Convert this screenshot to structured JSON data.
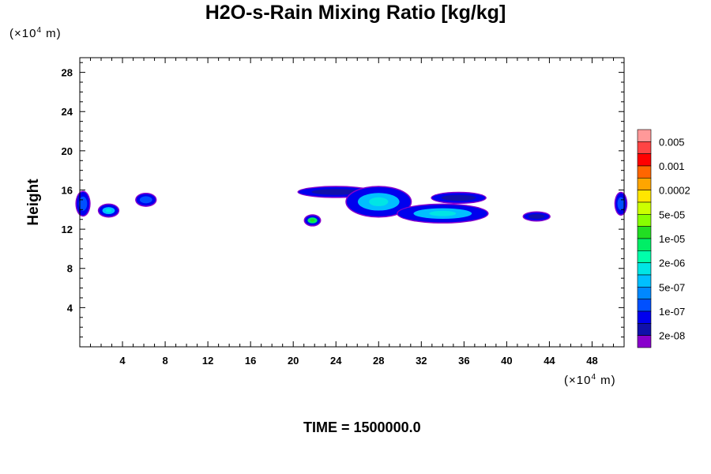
{
  "chart_data": {
    "type": "heatmap",
    "title": "H2O-s-Rain Mixing Ratio [kg/kg]",
    "ylabel": "Height",
    "x_unit": "m",
    "y_unit": "m",
    "unit_prefix": "(×10",
    "unit_exp": "4",
    "unit_suffix": " m)",
    "xlim": [
      0,
      51
    ],
    "ylim": [
      0,
      29.5
    ],
    "x_ticks": [
      4,
      8,
      12,
      16,
      20,
      24,
      28,
      32,
      36,
      40,
      44,
      48
    ],
    "y_ticks": [
      4,
      8,
      12,
      16,
      20,
      24,
      28
    ],
    "time_label": "TIME = 1500000.0",
    "colorbar": {
      "labels": [
        "0.005",
        "0.001",
        "0.0002",
        "5e-05",
        "1e-05",
        "2e-06",
        "5e-07",
        "1e-07",
        "2e-08"
      ],
      "colors": [
        "#ff9999",
        "#ff4444",
        "#ff0000",
        "#ff6600",
        "#ffa500",
        "#ffe600",
        "#ccff00",
        "#88ff00",
        "#22dd22",
        "#00ee66",
        "#00ffaa",
        "#00e5e5",
        "#00bfff",
        "#0088ff",
        "#0050ff",
        "#0000ee",
        "#1010aa",
        "#8800cc"
      ]
    },
    "features": [
      {
        "x": 0.3,
        "y": 14.6,
        "rx": 0.6,
        "ry": 1.2,
        "level": "1e-07"
      },
      {
        "x": 2.7,
        "y": 13.9,
        "rx": 0.9,
        "ry": 0.6,
        "level": "5e-07"
      },
      {
        "x": 6.2,
        "y": 15.0,
        "rx": 0.9,
        "ry": 0.6,
        "level": "1e-07"
      },
      {
        "x": 21.8,
        "y": 12.9,
        "rx": 0.7,
        "ry": 0.5,
        "level": "2e-06"
      },
      {
        "x": 24.0,
        "y": 15.8,
        "rx": 3.5,
        "ry": 0.5,
        "level": "2e-08"
      },
      {
        "x": 28.0,
        "y": 14.8,
        "rx": 3.0,
        "ry": 1.5,
        "level": "5e-07"
      },
      {
        "x": 34.0,
        "y": 13.6,
        "rx": 4.2,
        "ry": 0.9,
        "level": "5e-07"
      },
      {
        "x": 35.5,
        "y": 15.2,
        "rx": 2.5,
        "ry": 0.5,
        "level": "2e-08"
      },
      {
        "x": 42.8,
        "y": 13.3,
        "rx": 1.2,
        "ry": 0.4,
        "level": "2e-08"
      },
      {
        "x": 50.7,
        "y": 14.6,
        "rx": 0.5,
        "ry": 1.1,
        "level": "1e-07"
      }
    ]
  }
}
